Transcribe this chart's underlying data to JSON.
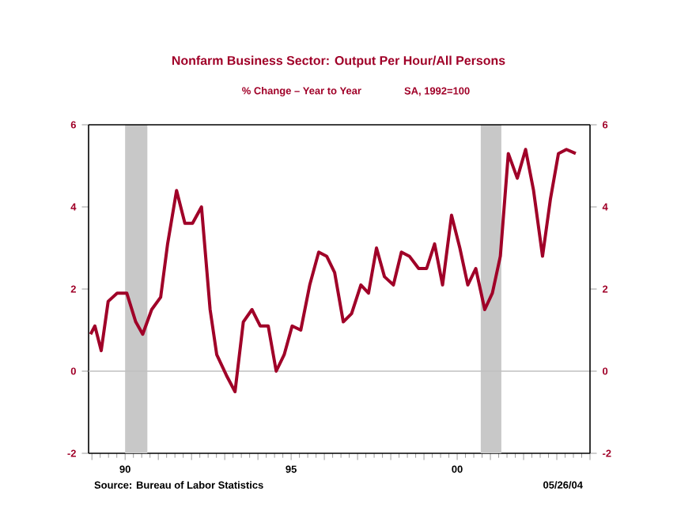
{
  "chart_data": {
    "type": "line",
    "title": "Nonfarm Business Sector: Output Per Hour/All Persons",
    "subtitle": "% Change – Year to Year",
    "annotations": [
      "SA, 1992=100",
      "Source:  Bureau of Labor Statistics",
      "05/26/04"
    ],
    "x": [
      1988.96,
      1989.09,
      1989.28,
      1989.49,
      1989.76,
      1990.05,
      1990.32,
      1990.53,
      1990.8,
      1991.07,
      1991.28,
      1991.55,
      1991.8,
      1992.03,
      1992.3,
      1992.56,
      1992.76,
      1993.05,
      1993.31,
      1993.56,
      1993.82,
      1994.07,
      1994.31,
      1994.55,
      1994.79,
      1995.03,
      1995.29,
      1995.56,
      1995.83,
      1996.07,
      1996.31,
      1996.57,
      1996.82,
      1997.1,
      1997.33,
      1997.57,
      1997.81,
      1998.08,
      1998.32,
      1998.56,
      1998.84,
      1999.08,
      1999.32,
      1999.56,
      1999.83,
      2000.08,
      2000.32,
      2000.56,
      2000.83,
      2001.06,
      2001.3,
      2001.54,
      2001.81,
      2002.06,
      2002.3,
      2002.57,
      2002.81,
      2003.05,
      2003.29,
      2003.57
    ],
    "series": [
      {
        "color": "#a00028",
        "values": [
          0.9,
          1.1,
          0.5,
          1.7,
          1.9,
          1.9,
          1.2,
          0.9,
          1.5,
          1.8,
          3.1,
          4.4,
          3.6,
          3.6,
          4.0,
          1.5,
          0.4,
          -0.1,
          -0.5,
          1.2,
          1.5,
          1.1,
          1.1,
          0.0,
          0.4,
          1.1,
          1.0,
          2.1,
          2.9,
          2.8,
          2.4,
          1.2,
          1.4,
          2.1,
          1.9,
          3.0,
          2.3,
          2.1,
          2.9,
          2.8,
          2.5,
          2.5,
          3.1,
          2.1,
          3.8,
          3.0,
          2.1,
          2.5,
          1.5,
          1.9,
          2.8,
          5.3,
          4.7,
          5.4,
          4.4,
          2.8,
          4.2,
          5.3,
          5.4,
          5.3
        ]
      }
    ],
    "xlim": [
      1988.9,
      2004
    ],
    "xticks": [
      {
        "value": 1989,
        "label": null
      },
      {
        "value": 1990,
        "label": "90"
      },
      {
        "value": 1991,
        "label": null
      },
      {
        "value": 1992,
        "label": null
      },
      {
        "value": 1993,
        "label": null
      },
      {
        "value": 1994,
        "label": null
      },
      {
        "value": 1995,
        "label": "95"
      },
      {
        "value": 1996,
        "label": null
      },
      {
        "value": 1997,
        "label": null
      },
      {
        "value": 1998,
        "label": null
      },
      {
        "value": 1999,
        "label": null
      },
      {
        "value": 2000,
        "label": "00"
      },
      {
        "value": 2001,
        "label": null
      },
      {
        "value": 2002,
        "label": null
      },
      {
        "value": 2003,
        "label": null
      },
      {
        "value": 2004,
        "label": null
      }
    ],
    "ylim": [
      -2,
      6
    ],
    "yticks": [
      -2,
      0,
      2,
      4,
      6
    ],
    "y2lim": [
      -2,
      6
    ],
    "y2ticks": [
      -2,
      0,
      2,
      4,
      6
    ],
    "ref_lines": [
      {
        "axis": "y",
        "value": 0,
        "color": "#c0c0c0"
      }
    ],
    "bands": [
      {
        "axis": "x",
        "from": 1990.0,
        "to": 1990.67,
        "color": "#c8c8c8"
      },
      {
        "axis": "x",
        "from": 2000.71,
        "to": 2001.33,
        "color": "#c8c8c8"
      }
    ],
    "grid": false,
    "legend": false,
    "line_style": "solid",
    "marker": "none"
  }
}
